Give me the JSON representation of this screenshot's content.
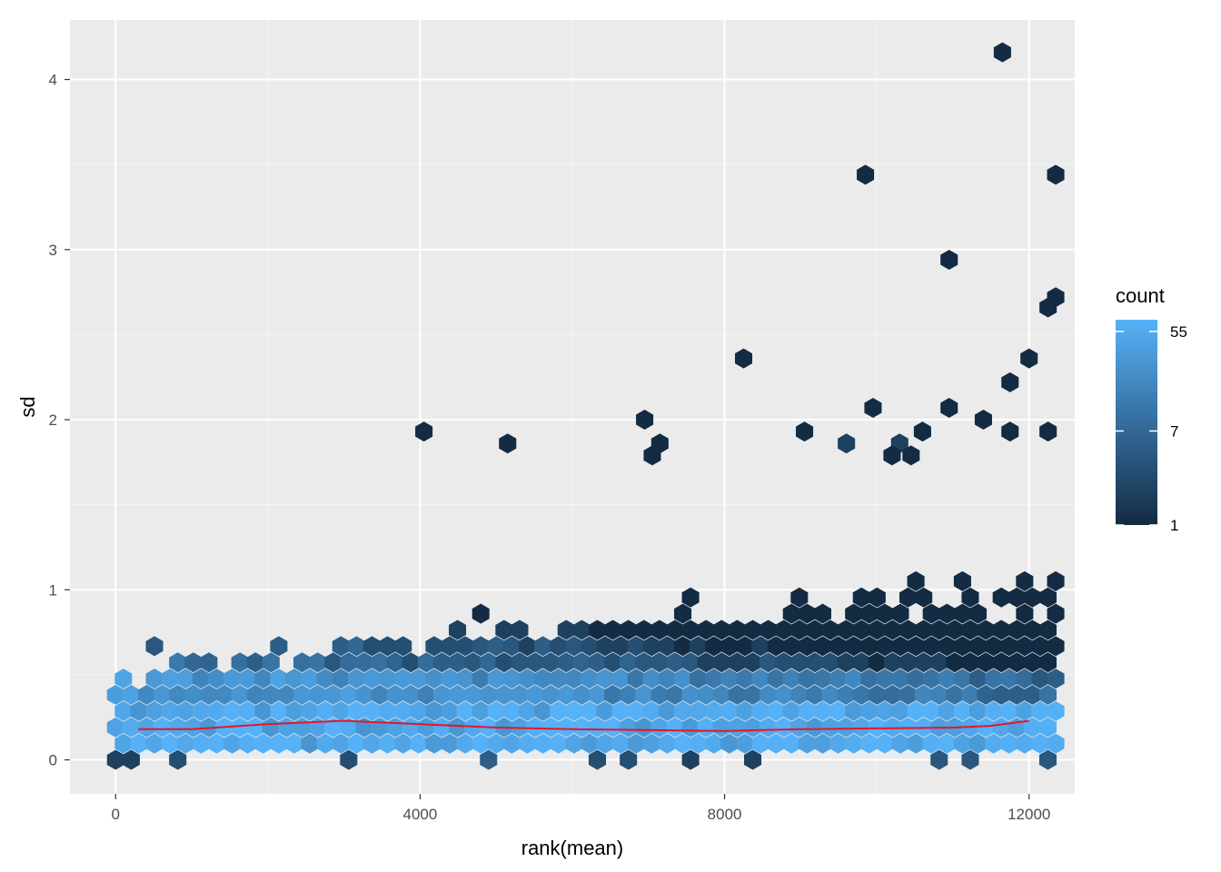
{
  "chart_data": {
    "type": "heatmap",
    "subtype": "hexbin",
    "xlabel": "rank(mean)",
    "ylabel": "sd",
    "xlim": [
      -600,
      12600
    ],
    "ylim": [
      -0.2,
      4.35
    ],
    "x_ticks": [
      0,
      4000,
      8000,
      12000
    ],
    "x_tick_labels": [
      "0",
      "4000",
      "8000",
      "12000"
    ],
    "y_ticks": [
      0,
      1,
      2,
      3,
      4
    ],
    "y_tick_labels": [
      "0",
      "1",
      "2",
      "3",
      "4"
    ],
    "grid": true,
    "legend": {
      "title": "count",
      "placement": "right",
      "scale": "log",
      "breaks": [
        1,
        7,
        55
      ],
      "break_labels": [
        "1",
        "7",
        "55"
      ],
      "min": 1,
      "max": 70,
      "color_low": "#132B43",
      "color_high": "#56B1F7"
    },
    "outliers": [
      {
        "x": 11650,
        "y": 4.16,
        "count": 1
      },
      {
        "x": 9850,
        "y": 3.44,
        "count": 1
      },
      {
        "x": 12350,
        "y": 3.44,
        "count": 1
      },
      {
        "x": 10950,
        "y": 2.94,
        "count": 1
      },
      {
        "x": 12350,
        "y": 2.72,
        "count": 1
      },
      {
        "x": 12250,
        "y": 2.66,
        "count": 1
      },
      {
        "x": 8250,
        "y": 2.36,
        "count": 1
      },
      {
        "x": 12000,
        "y": 2.36,
        "count": 1
      },
      {
        "x": 11750,
        "y": 2.22,
        "count": 1
      },
      {
        "x": 9950,
        "y": 2.07,
        "count": 1
      },
      {
        "x": 10950,
        "y": 2.07,
        "count": 1
      },
      {
        "x": 6950,
        "y": 2.0,
        "count": 1
      },
      {
        "x": 11400,
        "y": 2.0,
        "count": 1
      },
      {
        "x": 4050,
        "y": 1.93,
        "count": 1
      },
      {
        "x": 9050,
        "y": 1.93,
        "count": 1
      },
      {
        "x": 10600,
        "y": 1.93,
        "count": 1
      },
      {
        "x": 11750,
        "y": 1.93,
        "count": 1
      },
      {
        "x": 12250,
        "y": 1.93,
        "count": 1
      },
      {
        "x": 5150,
        "y": 1.86,
        "count": 1
      },
      {
        "x": 7150,
        "y": 1.86,
        "count": 1
      },
      {
        "x": 9600,
        "y": 1.86,
        "count": 2
      },
      {
        "x": 10300,
        "y": 1.86,
        "count": 2
      },
      {
        "x": 7050,
        "y": 1.79,
        "count": 1
      },
      {
        "x": 10200,
        "y": 1.79,
        "count": 1
      },
      {
        "x": 10450,
        "y": 1.79,
        "count": 1
      }
    ],
    "smooth_line": {
      "color": "#E4152A",
      "x": [
        300,
        1000,
        2000,
        3000,
        4000,
        5000,
        6000,
        7000,
        8000,
        9000,
        10000,
        11000,
        11500,
        12000
      ],
      "y": [
        0.18,
        0.18,
        0.21,
        0.23,
        0.21,
        0.19,
        0.18,
        0.175,
        0.17,
        0.18,
        0.185,
        0.19,
        0.2,
        0.23
      ]
    }
  }
}
